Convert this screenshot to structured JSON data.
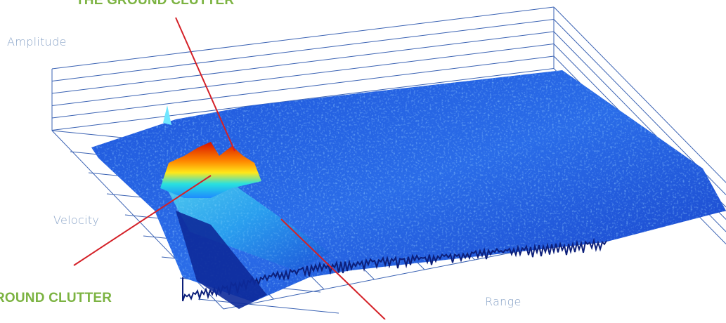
{
  "chart_data": {
    "type": "surface",
    "axes": {
      "z": "Amplitude",
      "y": "Velocity",
      "x": "Range"
    },
    "annotations": [
      "THE GROUND CLUTTER",
      "GROUND CLUTTER"
    ],
    "colors": {
      "grid": "#3a62b3",
      "annotation": "#7cb342",
      "axis_label": "#8aa4c8",
      "leader_line": "#d42027",
      "surface_low": "#1230b8",
      "surface_mid": "#2a6ce8",
      "surface_high": "#ff2a0a"
    }
  }
}
